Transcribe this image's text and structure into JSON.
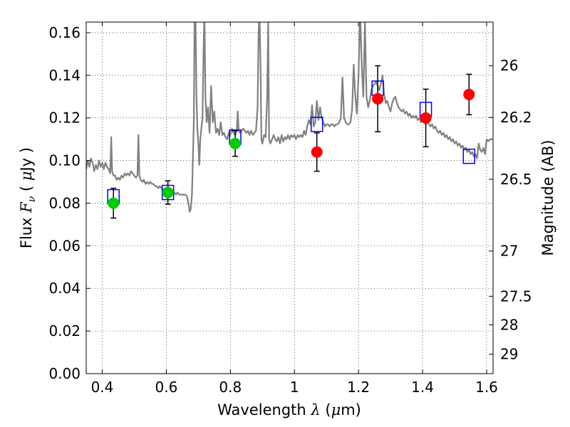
{
  "chart_data": {
    "type": "scatter",
    "xlabel": {
      "prefix": "Wavelength  ",
      "symbol": "λ",
      "units": " (",
      "mu": "μ",
      "unit_tail": "m)"
    },
    "ylabel": {
      "prefix": "Flux  ",
      "symbol": "F",
      "sub": "ν",
      "units_open": "  ( ",
      "mu": "μ",
      "unit_tail": "Jy )"
    },
    "y2label": "Magnitude (AB)",
    "xlim": [
      0.35,
      1.62
    ],
    "ylim": [
      0.0,
      0.165
    ],
    "grid": true,
    "x_ticks": [
      {
        "value": 0.4,
        "label": "0.4"
      },
      {
        "value": 0.6,
        "label": "0.6"
      },
      {
        "value": 0.8,
        "label": "0.8"
      },
      {
        "value": 1.0,
        "label": "1"
      },
      {
        "value": 1.2,
        "label": "1.2"
      },
      {
        "value": 1.4,
        "label": "1.4"
      },
      {
        "value": 1.6,
        "label": "1.6"
      }
    ],
    "y_ticks": [
      {
        "value": 0.0,
        "label": "0.00"
      },
      {
        "value": 0.02,
        "label": "0.02"
      },
      {
        "value": 0.04,
        "label": "0.04"
      },
      {
        "value": 0.06,
        "label": "0.06"
      },
      {
        "value": 0.08,
        "label": "0.08"
      },
      {
        "value": 0.1,
        "label": "0.10"
      },
      {
        "value": 0.12,
        "label": "0.12"
      },
      {
        "value": 0.14,
        "label": "0.14"
      },
      {
        "value": 0.16,
        "label": "0.16"
      }
    ],
    "mag_ticks": [
      {
        "mag": 26,
        "label": "26"
      },
      {
        "mag": 26.2,
        "label": "26.2"
      },
      {
        "mag": 26.5,
        "label": "26.5"
      },
      {
        "mag": 27,
        "label": "27"
      },
      {
        "mag": 27.5,
        "label": "27.5"
      },
      {
        "mag": 28,
        "label": "28"
      },
      {
        "mag": 29,
        "label": "29"
      }
    ],
    "series": [
      {
        "kind": "line",
        "color": "#808080",
        "points": [
          [
            0.35,
            0.096
          ],
          [
            0.355,
            0.1
          ],
          [
            0.36,
            0.097
          ],
          [
            0.365,
            0.101
          ],
          [
            0.37,
            0.099
          ],
          [
            0.375,
            0.095
          ],
          [
            0.38,
            0.098
          ],
          [
            0.385,
            0.096
          ],
          [
            0.39,
            0.1
          ],
          [
            0.395,
            0.097
          ],
          [
            0.4,
            0.099
          ],
          [
            0.405,
            0.096
          ],
          [
            0.41,
            0.099
          ],
          [
            0.415,
            0.097
          ],
          [
            0.42,
            0.096
          ],
          [
            0.425,
            0.094
          ],
          [
            0.428,
            0.111
          ],
          [
            0.431,
            0.095
          ],
          [
            0.435,
            0.093
          ],
          [
            0.44,
            0.093
          ],
          [
            0.445,
            0.091
          ],
          [
            0.45,
            0.092
          ],
          [
            0.455,
            0.091
          ],
          [
            0.46,
            0.093
          ],
          [
            0.465,
            0.092
          ],
          [
            0.47,
            0.094
          ],
          [
            0.475,
            0.093
          ],
          [
            0.48,
            0.094
          ],
          [
            0.485,
            0.093
          ],
          [
            0.49,
            0.095
          ],
          [
            0.495,
            0.094
          ],
          [
            0.5,
            0.093
          ],
          [
            0.505,
            0.092
          ],
          [
            0.51,
            0.093
          ],
          [
            0.513,
            0.112
          ],
          [
            0.516,
            0.093
          ],
          [
            0.52,
            0.091
          ],
          [
            0.525,
            0.09
          ],
          [
            0.53,
            0.091
          ],
          [
            0.535,
            0.089
          ],
          [
            0.54,
            0.09
          ],
          [
            0.545,
            0.089
          ],
          [
            0.55,
            0.09
          ],
          [
            0.555,
            0.089
          ],
          [
            0.56,
            0.089
          ],
          [
            0.565,
            0.088
          ],
          [
            0.57,
            0.088
          ],
          [
            0.575,
            0.087
          ],
          [
            0.58,
            0.088
          ],
          [
            0.585,
            0.087
          ],
          [
            0.59,
            0.086
          ],
          [
            0.595,
            0.087
          ],
          [
            0.6,
            0.086
          ],
          [
            0.605,
            0.086
          ],
          [
            0.61,
            0.085
          ],
          [
            0.615,
            0.086
          ],
          [
            0.62,
            0.085
          ],
          [
            0.625,
            0.085
          ],
          [
            0.63,
            0.084
          ],
          [
            0.635,
            0.085
          ],
          [
            0.64,
            0.084
          ],
          [
            0.645,
            0.084
          ],
          [
            0.65,
            0.084
          ],
          [
            0.655,
            0.084
          ],
          [
            0.66,
            0.084
          ],
          [
            0.665,
            0.083
          ],
          [
            0.67,
            0.079
          ],
          [
            0.673,
            0.076
          ],
          [
            0.676,
            0.077
          ],
          [
            0.68,
            0.084
          ],
          [
            0.683,
            0.1
          ],
          [
            0.686,
            0.12
          ],
          [
            0.688,
            0.165
          ],
          [
            0.691,
            0.17
          ],
          [
            0.694,
            0.13
          ],
          [
            0.697,
            0.115
          ],
          [
            0.7,
            0.108
          ],
          [
            0.703,
            0.098
          ],
          [
            0.706,
            0.11
          ],
          [
            0.71,
            0.116
          ],
          [
            0.713,
            0.12
          ],
          [
            0.716,
            0.15
          ],
          [
            0.719,
            0.17
          ],
          [
            0.722,
            0.13
          ],
          [
            0.726,
            0.118
          ],
          [
            0.73,
            0.125
          ],
          [
            0.735,
            0.113
          ],
          [
            0.74,
            0.135
          ],
          [
            0.745,
            0.118
          ],
          [
            0.75,
            0.123
          ],
          [
            0.755,
            0.113
          ],
          [
            0.76,
            0.115
          ],
          [
            0.765,
            0.112
          ],
          [
            0.77,
            0.118
          ],
          [
            0.775,
            0.112
          ],
          [
            0.78,
            0.113
          ],
          [
            0.785,
            0.111
          ],
          [
            0.79,
            0.11
          ],
          [
            0.795,
            0.113
          ],
          [
            0.8,
            0.112
          ],
          [
            0.805,
            0.115
          ],
          [
            0.81,
            0.113
          ],
          [
            0.815,
            0.112
          ],
          [
            0.82,
            0.114
          ],
          [
            0.823,
            0.123
          ],
          [
            0.826,
            0.114
          ],
          [
            0.83,
            0.113
          ],
          [
            0.835,
            0.114
          ],
          [
            0.84,
            0.115
          ],
          [
            0.845,
            0.114
          ],
          [
            0.85,
            0.113
          ],
          [
            0.855,
            0.114
          ],
          [
            0.86,
            0.112
          ],
          [
            0.865,
            0.114
          ],
          [
            0.87,
            0.112
          ],
          [
            0.875,
            0.113
          ],
          [
            0.88,
            0.114
          ],
          [
            0.885,
            0.125
          ],
          [
            0.888,
            0.16
          ],
          [
            0.891,
            0.17
          ],
          [
            0.894,
            0.145
          ],
          [
            0.897,
            0.11
          ],
          [
            0.9,
            0.108
          ],
          [
            0.905,
            0.112
          ],
          [
            0.91,
            0.111
          ],
          [
            0.915,
            0.13
          ],
          [
            0.918,
            0.165
          ],
          [
            0.921,
            0.11
          ],
          [
            0.925,
            0.108
          ],
          [
            0.93,
            0.11
          ],
          [
            0.935,
            0.112
          ],
          [
            0.94,
            0.11
          ],
          [
            0.945,
            0.109
          ],
          [
            0.95,
            0.111
          ],
          [
            0.955,
            0.108
          ],
          [
            0.96,
            0.112
          ],
          [
            0.965,
            0.109
          ],
          [
            0.97,
            0.111
          ],
          [
            0.975,
            0.11
          ],
          [
            0.98,
            0.112
          ],
          [
            0.985,
            0.11
          ],
          [
            0.99,
            0.112
          ],
          [
            0.995,
            0.111
          ],
          [
            1.0,
            0.112
          ],
          [
            1.005,
            0.11
          ],
          [
            1.01,
            0.112
          ],
          [
            1.015,
            0.111
          ],
          [
            1.02,
            0.112
          ],
          [
            1.025,
            0.111
          ],
          [
            1.03,
            0.114
          ],
          [
            1.035,
            0.112
          ],
          [
            1.04,
            0.116
          ],
          [
            1.045,
            0.119
          ],
          [
            1.05,
            0.117
          ],
          [
            1.055,
            0.126
          ],
          [
            1.06,
            0.116
          ],
          [
            1.065,
            0.118
          ],
          [
            1.07,
            0.128
          ],
          [
            1.075,
            0.119
          ],
          [
            1.08,
            0.125
          ],
          [
            1.085,
            0.12
          ],
          [
            1.09,
            0.118
          ],
          [
            1.095,
            0.116
          ],
          [
            1.1,
            0.117
          ],
          [
            1.105,
            0.117
          ],
          [
            1.11,
            0.116
          ],
          [
            1.115,
            0.117
          ],
          [
            1.12,
            0.117
          ],
          [
            1.125,
            0.116
          ],
          [
            1.13,
            0.117
          ],
          [
            1.135,
            0.117
          ],
          [
            1.14,
            0.118
          ],
          [
            1.145,
            0.12
          ],
          [
            1.15,
            0.139
          ],
          [
            1.155,
            0.12
          ],
          [
            1.16,
            0.118
          ],
          [
            1.165,
            0.117
          ],
          [
            1.17,
            0.117
          ],
          [
            1.175,
            0.118
          ],
          [
            1.18,
            0.124
          ],
          [
            1.185,
            0.145
          ],
          [
            1.19,
            0.13
          ],
          [
            1.195,
            0.122
          ],
          [
            1.2,
            0.14
          ],
          [
            1.205,
            0.17
          ],
          [
            1.21,
            0.145
          ],
          [
            1.215,
            0.13
          ],
          [
            1.22,
            0.165
          ],
          [
            1.225,
            0.13
          ],
          [
            1.23,
            0.125
          ],
          [
            1.235,
            0.128
          ],
          [
            1.24,
            0.133
          ],
          [
            1.245,
            0.135
          ],
          [
            1.25,
            0.136
          ],
          [
            1.255,
            0.137
          ],
          [
            1.26,
            0.135
          ],
          [
            1.265,
            0.133
          ],
          [
            1.27,
            0.136
          ],
          [
            1.275,
            0.14
          ],
          [
            1.28,
            0.131
          ],
          [
            1.285,
            0.127
          ],
          [
            1.29,
            0.128
          ],
          [
            1.295,
            0.125
          ],
          [
            1.3,
            0.123
          ],
          [
            1.305,
            0.127
          ],
          [
            1.31,
            0.129
          ],
          [
            1.315,
            0.13
          ],
          [
            1.32,
            0.127
          ],
          [
            1.325,
            0.125
          ],
          [
            1.33,
            0.124
          ],
          [
            1.335,
            0.123
          ],
          [
            1.34,
            0.124
          ],
          [
            1.345,
            0.122
          ],
          [
            1.35,
            0.123
          ],
          [
            1.355,
            0.121
          ],
          [
            1.36,
            0.122
          ],
          [
            1.365,
            0.12
          ],
          [
            1.37,
            0.121
          ],
          [
            1.375,
            0.12
          ],
          [
            1.38,
            0.121
          ],
          [
            1.385,
            0.119
          ],
          [
            1.39,
            0.12
          ],
          [
            1.395,
            0.118
          ],
          [
            1.4,
            0.119
          ],
          [
            1.405,
            0.118
          ],
          [
            1.41,
            0.117
          ],
          [
            1.415,
            0.118
          ],
          [
            1.42,
            0.117
          ],
          [
            1.425,
            0.116
          ],
          [
            1.43,
            0.117
          ],
          [
            1.435,
            0.115
          ],
          [
            1.44,
            0.116
          ],
          [
            1.445,
            0.114
          ],
          [
            1.45,
            0.113
          ],
          [
            1.455,
            0.114
          ],
          [
            1.46,
            0.112
          ],
          [
            1.465,
            0.113
          ],
          [
            1.47,
            0.111
          ],
          [
            1.475,
            0.112
          ],
          [
            1.48,
            0.11
          ],
          [
            1.485,
            0.111
          ],
          [
            1.49,
            0.109
          ],
          [
            1.495,
            0.11
          ],
          [
            1.5,
            0.108
          ],
          [
            1.505,
            0.109
          ],
          [
            1.51,
            0.107
          ],
          [
            1.515,
            0.108
          ],
          [
            1.52,
            0.106
          ],
          [
            1.525,
            0.107
          ],
          [
            1.53,
            0.105
          ],
          [
            1.535,
            0.106
          ],
          [
            1.54,
            0.104
          ],
          [
            1.545,
            0.105
          ],
          [
            1.55,
            0.103
          ],
          [
            1.555,
            0.104
          ],
          [
            1.56,
            0.102
          ],
          [
            1.565,
            0.103
          ],
          [
            1.57,
            0.101
          ],
          [
            1.575,
            0.108
          ],
          [
            1.58,
            0.105
          ],
          [
            1.585,
            0.104
          ],
          [
            1.59,
            0.106
          ],
          [
            1.595,
            0.103
          ],
          [
            1.6,
            0.11
          ],
          [
            1.605,
            0.109
          ],
          [
            1.61,
            0.11
          ],
          [
            1.615,
            0.11
          ],
          [
            1.62,
            0.11
          ]
        ]
      },
      {
        "kind": "open-squares",
        "color": "#0000ff",
        "points": [
          [
            0.435,
            0.083
          ],
          [
            0.605,
            0.085
          ],
          [
            0.815,
            0.111
          ],
          [
            1.07,
            0.117
          ],
          [
            1.26,
            0.134
          ],
          [
            1.41,
            0.124
          ],
          [
            1.545,
            0.102
          ]
        ]
      },
      {
        "kind": "markers",
        "color": "#00cc00",
        "points": [
          {
            "x": 0.435,
            "y": 0.08,
            "err": 0.007
          },
          {
            "x": 0.605,
            "y": 0.085,
            "err": 0.0055
          },
          {
            "x": 0.815,
            "y": 0.108,
            "err": 0.006
          }
        ]
      },
      {
        "kind": "markers",
        "color": "#ff0000",
        "points": [
          {
            "x": 1.07,
            "y": 0.104,
            "err": 0.009
          },
          {
            "x": 1.26,
            "y": 0.129,
            "err": 0.0155
          },
          {
            "x": 1.41,
            "y": 0.12,
            "err": 0.0135
          },
          {
            "x": 1.545,
            "y": 0.131,
            "err": 0.0095
          }
        ]
      }
    ]
  }
}
